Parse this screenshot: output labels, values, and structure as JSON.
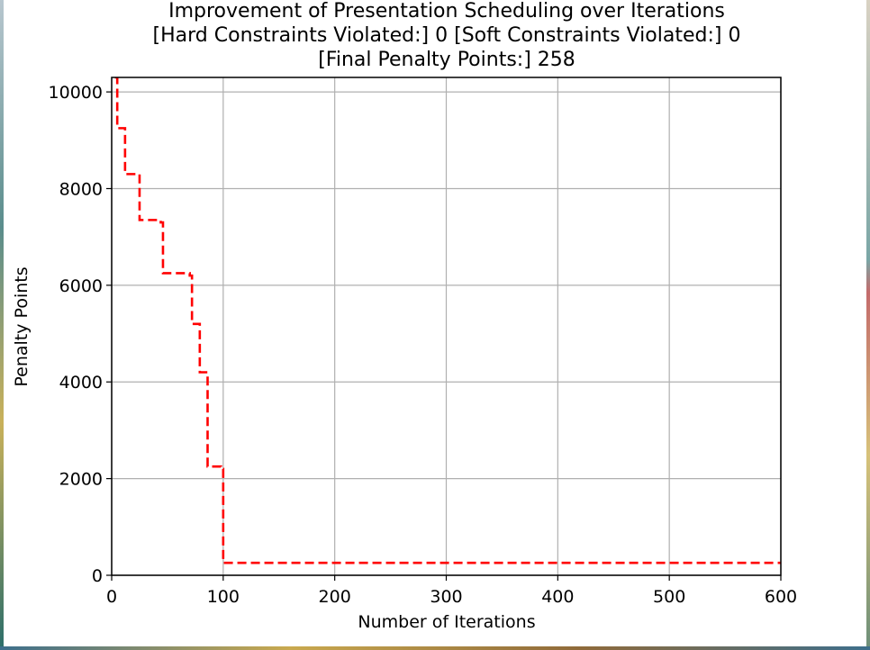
{
  "chart_data": {
    "type": "line",
    "title_lines": [
      "Improvement of Presentation Scheduling over Iterations",
      "[Hard Constraints Violated:] 0 [Soft Constraints Violated:] 0",
      "[Final Penalty Points:] 258"
    ],
    "xlabel": "Number of Iterations",
    "ylabel": "Penalty Points",
    "xlim": [
      0,
      600
    ],
    "ylim": [
      0,
      10300
    ],
    "xticks": [
      0,
      100,
      200,
      300,
      400,
      500,
      600
    ],
    "yticks": [
      0,
      2000,
      4000,
      6000,
      8000,
      10000
    ],
    "grid": true,
    "series": [
      {
        "color": "#ff0000",
        "line_style": "dashed",
        "step": true,
        "points": [
          [
            3,
            10300
          ],
          [
            5,
            9250
          ],
          [
            11,
            9250
          ],
          [
            12,
            8300
          ],
          [
            23,
            8300
          ],
          [
            25,
            7350
          ],
          [
            44,
            7300
          ],
          [
            46,
            6250
          ],
          [
            70,
            6200
          ],
          [
            72,
            5200
          ],
          [
            78,
            5200
          ],
          [
            79,
            4200
          ],
          [
            85,
            4200
          ],
          [
            86,
            2250
          ],
          [
            98,
            2200
          ],
          [
            100,
            258
          ],
          [
            600,
            258
          ]
        ]
      }
    ]
  }
}
